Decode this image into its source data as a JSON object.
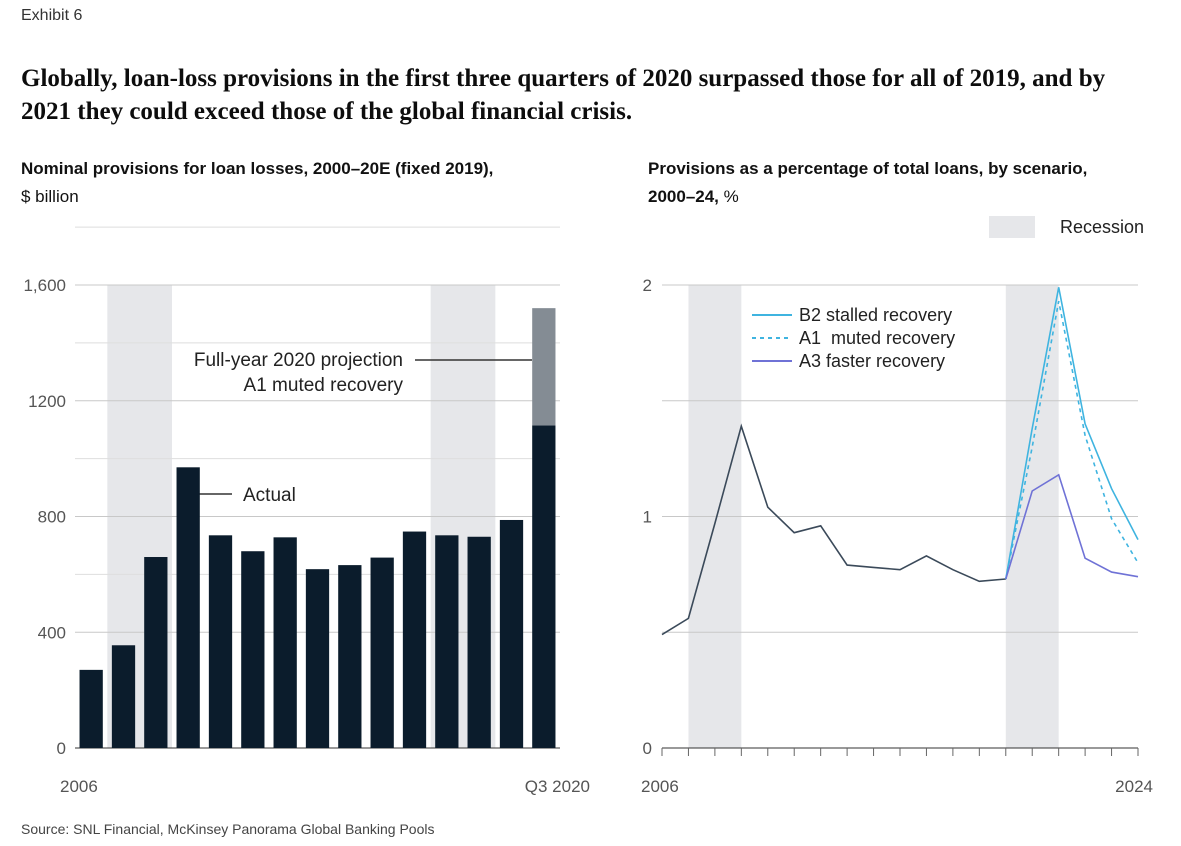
{
  "exhibit_label": "Exhibit 6",
  "headline": "Globally, loan-loss provisions in the first three quarters of 2020 surpassed those for all of 2019, and by 2021 they could exceed those of the global financial crisis.",
  "source": "Source: SNL Financial, McKinsey Panorama Global Banking Pools",
  "colors": {
    "bar_actual": "#0b1c2c",
    "bar_projection": "#848c94",
    "recession_band": "#e6e7ea",
    "gridline": "#c8c8c8",
    "historic_line": "#3b4a5a",
    "b2_line": "#3fb4e0",
    "a1_line": "#3fb4e0",
    "a3_line": "#6f72d6"
  },
  "chart_data": [
    {
      "type": "bar",
      "title_bold": "Nominal provisions for loan losses, 2000–20E (fixed 2019),",
      "title_rest": "$ billion",
      "x_tick_labels": [
        "2006",
        "Q3 2020"
      ],
      "y_ticks": [
        "0",
        "400",
        "800",
        "1200",
        "1,600"
      ],
      "ylim": [
        0,
        1600
      ],
      "grid": true,
      "recession_shading": [
        [
          1,
          3
        ],
        [
          11,
          13
        ]
      ],
      "series": [
        {
          "name": "Actual",
          "values": [
            270,
            355,
            660,
            970,
            735,
            680,
            728,
            618,
            632,
            658,
            748,
            735,
            730,
            788,
            1115
          ]
        },
        {
          "name": "Full-year 2020 projection",
          "values": [
            0,
            0,
            0,
            0,
            0,
            0,
            0,
            0,
            0,
            0,
            0,
            0,
            0,
            0,
            405
          ]
        }
      ],
      "annotations": {
        "actual": "Actual",
        "projection_line1": "Full-year 2020 projection",
        "projection_line2": "A1 muted recovery"
      }
    },
    {
      "type": "line",
      "title_bold": "Provisions as a percentage of total loans, by scenario,",
      "title_line2_bold": "2000–24,",
      "title_line2_rest": " %",
      "x_tick_labels": [
        "2006",
        "2024"
      ],
      "y_ticks": [
        "0",
        "1",
        "2"
      ],
      "ylim": [
        0,
        2
      ],
      "grid": true,
      "legend_recession": "Recession",
      "recession_shading": [
        [
          1,
          3
        ],
        [
          13,
          15
        ]
      ],
      "x": [
        0,
        1,
        2,
        3,
        4,
        5,
        6,
        7,
        8,
        9,
        10,
        11,
        12,
        13,
        14,
        15,
        16,
        17,
        18
      ],
      "history": [
        0.49,
        0.56,
        0.97,
        1.39,
        1.04,
        0.93,
        0.96,
        0.79,
        0.78,
        0.77,
        0.83,
        0.77,
        0.72,
        0.73
      ],
      "series": [
        {
          "name": "B2 stalled recovery",
          "style": "solid",
          "x": [
            13,
            14,
            15,
            16,
            17,
            18
          ],
          "values": [
            0.73,
            1.38,
            1.99,
            1.4,
            1.12,
            0.9
          ]
        },
        {
          "name": "A1  muted recovery",
          "style": "dashed",
          "x": [
            13,
            14,
            15,
            16,
            17,
            18
          ],
          "values": [
            0.73,
            1.3,
            1.93,
            1.35,
            0.99,
            0.8
          ]
        },
        {
          "name": "A3 faster recovery",
          "style": "solid",
          "x": [
            13,
            14,
            15,
            16,
            17,
            18
          ],
          "values": [
            0.73,
            1.11,
            1.18,
            0.82,
            0.76,
            0.74
          ]
        }
      ],
      "legend_placement": "top-left"
    }
  ]
}
